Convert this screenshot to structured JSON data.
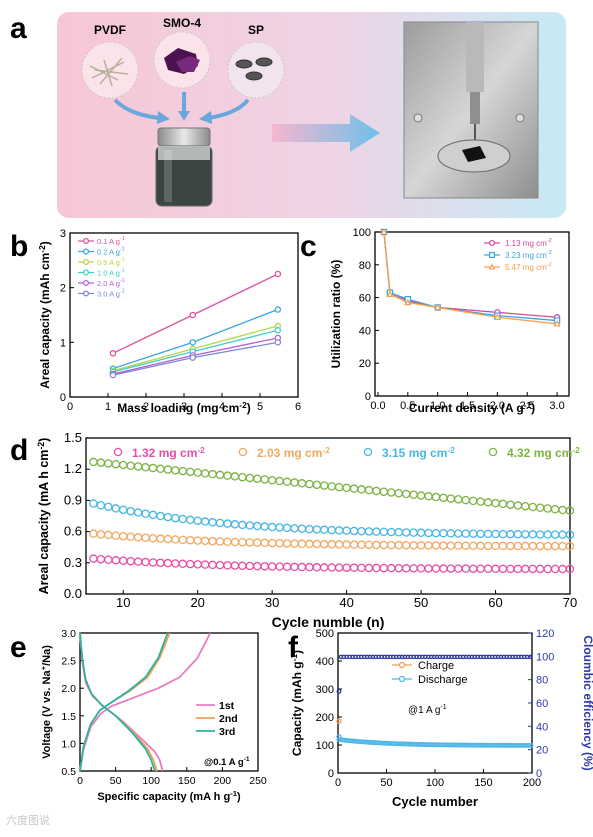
{
  "panel_a": {
    "letter": "a",
    "labels": [
      "PVDF",
      "SMO-4",
      "SP"
    ],
    "colors": {
      "bg_left": "#f6c9d6",
      "bg_right": "#c9eaf4",
      "arrow": "#6aa8dc"
    }
  },
  "watermark": "六度图说",
  "chart_data": [
    {
      "id": "b",
      "letter": "b",
      "type": "line",
      "xlabel": "Mass loading (mg cm",
      "xlabel_sup": "-2",
      "xlabel_tail": ")",
      "ylabel": "Areal capacity (mAh cm",
      "ylabel_sup": "-2",
      "ylabel_tail": ")",
      "xlim": [
        0,
        6
      ],
      "ylim": [
        0,
        3
      ],
      "xticks": [
        0,
        1,
        2,
        3,
        4,
        5,
        6
      ],
      "yticks": [
        0,
        1,
        2,
        3
      ],
      "x": [
        1.13,
        3.23,
        5.47
      ],
      "legend_position": "top-left",
      "series": [
        {
          "name": "0.1 A g",
          "sup": "-1",
          "color": "#e0509c",
          "values": [
            0.8,
            1.5,
            2.25
          ]
        },
        {
          "name": "0.2 A g",
          "sup": "-1",
          "color": "#3aa5e0",
          "values": [
            0.52,
            1.0,
            1.6
          ]
        },
        {
          "name": "0.5 A g",
          "sup": "-1",
          "color": "#b5d64a",
          "values": [
            0.48,
            0.88,
            1.3
          ]
        },
        {
          "name": "1.0 A g",
          "sup": "-1",
          "color": "#3fd0c2",
          "values": [
            0.46,
            0.83,
            1.22
          ]
        },
        {
          "name": "2.0 A g",
          "sup": "-1",
          "color": "#b25ed6",
          "values": [
            0.42,
            0.76,
            1.08
          ]
        },
        {
          "name": "3.0 A g",
          "sup": "-1",
          "color": "#7f88d8",
          "values": [
            0.4,
            0.72,
            1.0
          ]
        }
      ]
    },
    {
      "id": "c",
      "letter": "c",
      "type": "line",
      "xlabel": "Current density (A g",
      "xlabel_sup": "-1",
      "xlabel_tail": ")",
      "ylabel": "Utilization ratio (%)",
      "xlim": [
        0,
        3.1
      ],
      "ylim": [
        0,
        100
      ],
      "xticks": [
        0.0,
        0.5,
        1.0,
        1.5,
        2.0,
        2.5,
        3.0
      ],
      "xtick_labels": [
        "0.0",
        "0.5",
        "1.0",
        "1.5",
        "2.0",
        "2.5",
        "3.0"
      ],
      "yticks": [
        0,
        20,
        40,
        60,
        80,
        100
      ],
      "x": [
        0.1,
        0.2,
        0.5,
        1.0,
        2.0,
        3.0
      ],
      "legend_position": "top-right",
      "series": [
        {
          "name": "1.13 mg cm",
          "sup": "-2",
          "color": "#d14aa0",
          "values": [
            100,
            63,
            58,
            54,
            51,
            48
          ]
        },
        {
          "name": "3.23 mg cm",
          "sup": "-2",
          "color": "#3aa5e0",
          "values": [
            100,
            63,
            59,
            54,
            49,
            46
          ]
        },
        {
          "name": "5.47 mg cm",
          "sup": "-2",
          "color": "#f0a050",
          "values": [
            100,
            62,
            57,
            54,
            48,
            44
          ]
        }
      ]
    },
    {
      "id": "d",
      "letter": "d",
      "type": "scatter",
      "xlabel": "Cycle numble (n)",
      "ylabel": "Areal capacity (mA h cm",
      "ylabel_sup": "-2",
      "ylabel_tail": ")",
      "xlim": [
        5,
        70
      ],
      "ylim": [
        0,
        1.5
      ],
      "xticks": [
        10,
        20,
        30,
        40,
        50,
        60,
        70
      ],
      "yticks": [
        0.0,
        0.3,
        0.6,
        0.9,
        1.2,
        1.5
      ],
      "ytick_labels": [
        "0.0",
        "0.3",
        "0.6",
        "0.9",
        "1.2",
        "1.5"
      ],
      "x_range": [
        6,
        70
      ],
      "legend_position": "top",
      "series": [
        {
          "name": "1.32 mg cm",
          "sup": "-2",
          "color": "#e64fa6",
          "start": 0.34,
          "end": 0.24
        },
        {
          "name": "2.03 mg cm",
          "sup": "-2",
          "color": "#f0a860",
          "start": 0.58,
          "end": 0.46
        },
        {
          "name": "3.15 mg cm",
          "sup": "-2",
          "color": "#46b6e6",
          "start": 0.87,
          "end": 0.57
        },
        {
          "name": "4.32 mg cm",
          "sup": "-2",
          "color": "#7cb342",
          "start": 1.27,
          "end": 0.8
        }
      ]
    },
    {
      "id": "e",
      "letter": "e",
      "type": "line",
      "xlabel": "Specific capacity (mA h g",
      "xlabel_sup": "-1",
      "xlabel_tail": ")",
      "ylabel": "Voltage (V vs. Na",
      "ylabel_sup": "+",
      "ylabel_tail": "/Na)",
      "xlim": [
        0,
        250
      ],
      "ylim": [
        0.5,
        3.0
      ],
      "xticks": [
        0,
        50,
        100,
        150,
        200,
        250
      ],
      "yticks": [
        0.5,
        1.0,
        1.5,
        2.0,
        2.5,
        3.0
      ],
      "ytick_labels": [
        "0.5",
        "1.0",
        "1.5",
        "2.0",
        "2.5",
        "3.0"
      ],
      "annotation": "@0.1 A g",
      "annotation_sup": "-1",
      "legend_position": "center-right",
      "series": [
        {
          "name": "1st",
          "color": "#e97bc4",
          "discharge": [
            [
              0,
              3.0
            ],
            [
              3,
              2.5
            ],
            [
              8,
              2.1
            ],
            [
              18,
              1.85
            ],
            [
              35,
              1.65
            ],
            [
              60,
              1.4
            ],
            [
              85,
              1.1
            ],
            [
              105,
              0.85
            ],
            [
              112,
              0.7
            ],
            [
              116,
              0.5
            ]
          ],
          "charge": [
            [
              0,
              0.5
            ],
            [
              5,
              0.9
            ],
            [
              15,
              1.3
            ],
            [
              30,
              1.55
            ],
            [
              45,
              1.68
            ],
            [
              70,
              1.8
            ],
            [
              110,
              2.0
            ],
            [
              140,
              2.2
            ],
            [
              165,
              2.55
            ],
            [
              183,
              3.0
            ]
          ]
        },
        {
          "name": "2nd",
          "color": "#f0a050",
          "discharge": [
            [
              0,
              3.0
            ],
            [
              3,
              2.55
            ],
            [
              8,
              2.15
            ],
            [
              16,
              1.9
            ],
            [
              30,
              1.7
            ],
            [
              50,
              1.5
            ],
            [
              75,
              1.2
            ],
            [
              95,
              0.9
            ],
            [
              103,
              0.7
            ],
            [
              108,
              0.5
            ]
          ],
          "charge": [
            [
              0,
              0.5
            ],
            [
              5,
              0.95
            ],
            [
              15,
              1.35
            ],
            [
              28,
              1.6
            ],
            [
              45,
              1.75
            ],
            [
              70,
              1.95
            ],
            [
              95,
              2.2
            ],
            [
              112,
              2.55
            ],
            [
              126,
              3.0
            ]
          ]
        },
        {
          "name": "3rd",
          "color": "#2cb3a2",
          "discharge": [
            [
              0,
              3.0
            ],
            [
              3,
              2.55
            ],
            [
              8,
              2.15
            ],
            [
              16,
              1.9
            ],
            [
              30,
              1.7
            ],
            [
              50,
              1.5
            ],
            [
              73,
              1.2
            ],
            [
              92,
              0.9
            ],
            [
              100,
              0.7
            ],
            [
              105,
              0.5
            ]
          ],
          "charge": [
            [
              0,
              0.5
            ],
            [
              5,
              0.95
            ],
            [
              15,
              1.35
            ],
            [
              28,
              1.6
            ],
            [
              45,
              1.75
            ],
            [
              68,
              1.95
            ],
            [
              92,
              2.2
            ],
            [
              110,
              2.55
            ],
            [
              123,
              3.0
            ]
          ]
        }
      ]
    },
    {
      "id": "f",
      "letter": "f",
      "type": "scatter",
      "xlabel": "Cycle number",
      "ylabel": "Capacity (mAh g",
      "ylabel_sup": "-1",
      "ylabel_tail": ")",
      "y2label": "Cloumbic efficiency (%)",
      "xlim": [
        0,
        200
      ],
      "ylim": [
        0,
        500
      ],
      "y2lim": [
        0,
        120
      ],
      "xticks": [
        0,
        50,
        100,
        150,
        200
      ],
      "yticks": [
        0,
        100,
        200,
        300,
        400,
        500
      ],
      "y2ticks": [
        0,
        20,
        40,
        60,
        80,
        100,
        120
      ],
      "annotation": "@1 A g",
      "annotation_sup": "-1",
      "legend_position": "center",
      "series": [
        {
          "name": "Charge",
          "color": "#f0a050",
          "start": 185,
          "mid": 120,
          "end": 98
        },
        {
          "name": "Discharge",
          "color": "#4fb7e6",
          "start": 130,
          "mid": 120,
          "end": 98
        },
        {
          "name": "",
          "axis": "right",
          "color": "#2d3aa8",
          "start": 70,
          "value": 99.5
        }
      ]
    }
  ]
}
